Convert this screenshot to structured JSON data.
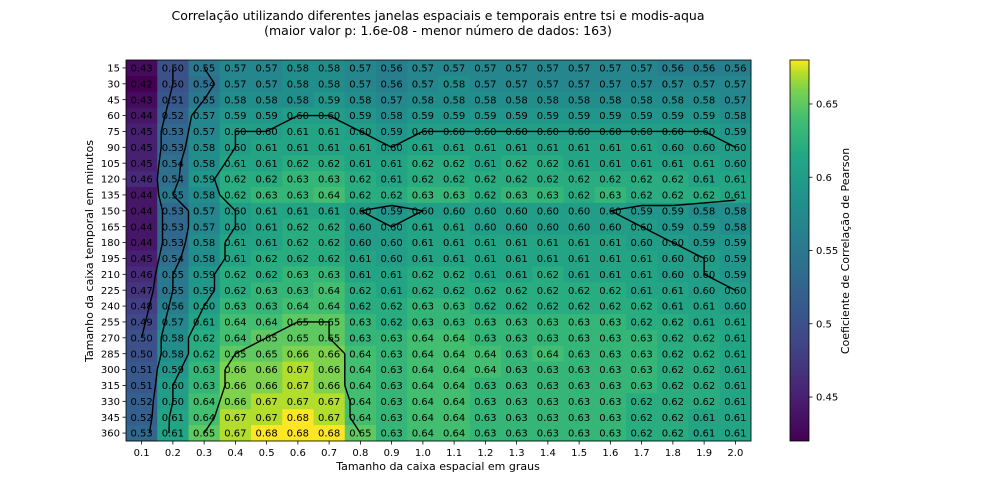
{
  "chart_data": {
    "type": "heatmap",
    "title": "Correlação utilizando diferentes janelas espaciais e temporais entre tsi e modis-aqua",
    "subtitle": "(maior valor p: 1.6e-08 - menor número de dados: 163)",
    "xlabel": "Tamanho da caixa espacial em graus",
    "ylabel": "Tamanho da caixa temporal em minutos",
    "colorbar_label": "Coeficiente de Correlação de Pearson",
    "colorbar_ticks": [
      "0.45",
      "0.5",
      "0.55",
      "0.6",
      "0.65"
    ],
    "colorbar_range": [
      0.42,
      0.68
    ],
    "colormap": "viridis",
    "x": [
      "0.1",
      "0.2",
      "0.3",
      "0.4",
      "0.5",
      "0.6",
      "0.7",
      "0.8",
      "0.9",
      "1.0",
      "1.1",
      "1.2",
      "1.3",
      "1.4",
      "1.5",
      "1.6",
      "1.7",
      "1.8",
      "1.9",
      "2.0"
    ],
    "y": [
      "15",
      "30",
      "45",
      "60",
      "75",
      "90",
      "105",
      "120",
      "135",
      "150",
      "165",
      "180",
      "195",
      "210",
      "225",
      "240",
      "255",
      "270",
      "285",
      "300",
      "315",
      "330",
      "345",
      "360"
    ],
    "values": [
      [
        0.43,
        0.5,
        0.55,
        0.57,
        0.57,
        0.58,
        0.58,
        0.57,
        0.56,
        0.57,
        0.57,
        0.57,
        0.57,
        0.57,
        0.57,
        0.57,
        0.57,
        0.56,
        0.56,
        0.56
      ],
      [
        0.42,
        0.5,
        0.54,
        0.57,
        0.57,
        0.58,
        0.58,
        0.57,
        0.56,
        0.57,
        0.58,
        0.57,
        0.57,
        0.57,
        0.57,
        0.57,
        0.57,
        0.57,
        0.57,
        0.57
      ],
      [
        0.43,
        0.51,
        0.55,
        0.58,
        0.58,
        0.58,
        0.59,
        0.58,
        0.57,
        0.58,
        0.58,
        0.58,
        0.58,
        0.58,
        0.58,
        0.58,
        0.58,
        0.58,
        0.58,
        0.57
      ],
      [
        0.44,
        0.52,
        0.57,
        0.59,
        0.59,
        0.6,
        0.6,
        0.59,
        0.58,
        0.59,
        0.59,
        0.59,
        0.59,
        0.59,
        0.59,
        0.59,
        0.59,
        0.59,
        0.59,
        0.58
      ],
      [
        0.45,
        0.53,
        0.57,
        0.6,
        0.6,
        0.61,
        0.61,
        0.6,
        0.59,
        0.6,
        0.6,
        0.6,
        0.6,
        0.6,
        0.6,
        0.6,
        0.6,
        0.6,
        0.6,
        0.59
      ],
      [
        0.45,
        0.53,
        0.58,
        0.6,
        0.61,
        0.61,
        0.61,
        0.61,
        0.6,
        0.61,
        0.61,
        0.61,
        0.61,
        0.61,
        0.61,
        0.61,
        0.61,
        0.6,
        0.6,
        0.6
      ],
      [
        0.45,
        0.54,
        0.58,
        0.61,
        0.61,
        0.62,
        0.62,
        0.61,
        0.61,
        0.62,
        0.62,
        0.61,
        0.62,
        0.62,
        0.61,
        0.61,
        0.61,
        0.61,
        0.61,
        0.6
      ],
      [
        0.46,
        0.54,
        0.59,
        0.62,
        0.62,
        0.63,
        0.63,
        0.62,
        0.61,
        0.62,
        0.62,
        0.62,
        0.62,
        0.62,
        0.62,
        0.62,
        0.62,
        0.62,
        0.61,
        0.61
      ],
      [
        0.44,
        0.55,
        0.58,
        0.62,
        0.63,
        0.63,
        0.64,
        0.62,
        0.62,
        0.63,
        0.63,
        0.62,
        0.63,
        0.63,
        0.62,
        0.63,
        0.62,
        0.62,
        0.62,
        0.61
      ],
      [
        0.44,
        0.53,
        0.57,
        0.6,
        0.61,
        0.61,
        0.61,
        0.6,
        0.59,
        0.6,
        0.6,
        0.6,
        0.6,
        0.6,
        0.6,
        0.6,
        0.59,
        0.59,
        0.58,
        0.58
      ],
      [
        0.44,
        0.53,
        0.57,
        0.6,
        0.61,
        0.62,
        0.62,
        0.6,
        0.6,
        0.61,
        0.61,
        0.6,
        0.6,
        0.6,
        0.6,
        0.6,
        0.6,
        0.59,
        0.59,
        0.58
      ],
      [
        0.44,
        0.53,
        0.58,
        0.61,
        0.61,
        0.62,
        0.62,
        0.6,
        0.6,
        0.61,
        0.61,
        0.61,
        0.61,
        0.61,
        0.61,
        0.61,
        0.6,
        0.6,
        0.59,
        0.59
      ],
      [
        0.45,
        0.54,
        0.58,
        0.61,
        0.62,
        0.62,
        0.62,
        0.61,
        0.6,
        0.61,
        0.61,
        0.61,
        0.61,
        0.61,
        0.61,
        0.61,
        0.61,
        0.6,
        0.6,
        0.59
      ],
      [
        0.46,
        0.55,
        0.59,
        0.62,
        0.62,
        0.63,
        0.63,
        0.61,
        0.61,
        0.62,
        0.62,
        0.61,
        0.61,
        0.62,
        0.61,
        0.61,
        0.61,
        0.6,
        0.6,
        0.59
      ],
      [
        0.47,
        0.55,
        0.59,
        0.62,
        0.63,
        0.63,
        0.64,
        0.62,
        0.61,
        0.62,
        0.62,
        0.62,
        0.62,
        0.62,
        0.62,
        0.62,
        0.61,
        0.61,
        0.6,
        0.6
      ],
      [
        0.48,
        0.56,
        0.6,
        0.63,
        0.63,
        0.64,
        0.64,
        0.62,
        0.62,
        0.63,
        0.63,
        0.62,
        0.62,
        0.62,
        0.62,
        0.62,
        0.62,
        0.61,
        0.61,
        0.6
      ],
      [
        0.49,
        0.57,
        0.61,
        0.64,
        0.64,
        0.65,
        0.65,
        0.63,
        0.62,
        0.63,
        0.63,
        0.63,
        0.63,
        0.63,
        0.63,
        0.63,
        0.62,
        0.62,
        0.61,
        0.61
      ],
      [
        0.5,
        0.58,
        0.62,
        0.64,
        0.65,
        0.65,
        0.65,
        0.63,
        0.63,
        0.64,
        0.64,
        0.63,
        0.63,
        0.63,
        0.63,
        0.63,
        0.63,
        0.62,
        0.62,
        0.61
      ],
      [
        0.5,
        0.58,
        0.62,
        0.65,
        0.65,
        0.66,
        0.66,
        0.64,
        0.63,
        0.64,
        0.64,
        0.64,
        0.63,
        0.64,
        0.63,
        0.63,
        0.63,
        0.62,
        0.62,
        0.61
      ],
      [
        0.51,
        0.59,
        0.63,
        0.66,
        0.66,
        0.67,
        0.66,
        0.64,
        0.63,
        0.64,
        0.64,
        0.64,
        0.63,
        0.63,
        0.63,
        0.63,
        0.63,
        0.62,
        0.62,
        0.61
      ],
      [
        0.51,
        0.6,
        0.63,
        0.66,
        0.66,
        0.67,
        0.66,
        0.64,
        0.63,
        0.64,
        0.64,
        0.63,
        0.63,
        0.63,
        0.63,
        0.63,
        0.63,
        0.62,
        0.62,
        0.61
      ],
      [
        0.52,
        0.6,
        0.64,
        0.66,
        0.67,
        0.67,
        0.67,
        0.64,
        0.63,
        0.64,
        0.64,
        0.63,
        0.63,
        0.63,
        0.63,
        0.63,
        0.62,
        0.62,
        0.62,
        0.61
      ],
      [
        0.52,
        0.61,
        0.64,
        0.67,
        0.67,
        0.68,
        0.67,
        0.64,
        0.63,
        0.64,
        0.64,
        0.63,
        0.63,
        0.63,
        0.63,
        0.63,
        0.62,
        0.62,
        0.61,
        0.61
      ],
      [
        0.53,
        0.61,
        0.65,
        0.67,
        0.68,
        0.68,
        0.68,
        0.65,
        0.63,
        0.64,
        0.64,
        0.63,
        0.63,
        0.63,
        0.63,
        0.63,
        0.62,
        0.62,
        0.61,
        0.61
      ]
    ],
    "contour_levels": [
      0.5,
      0.55,
      0.6,
      0.65
    ],
    "contour_color": "#000000"
  }
}
